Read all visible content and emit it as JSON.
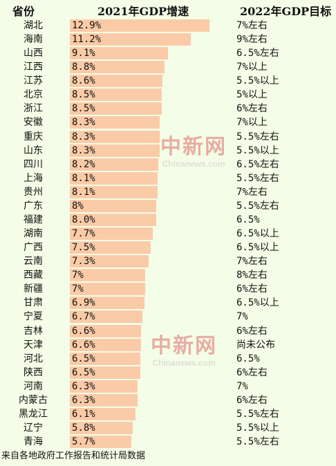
{
  "chart_data": {
    "type": "bar",
    "orientation": "horizontal",
    "headers": {
      "province": "省份",
      "growth": "2021年GDP增速",
      "target": "2022年GDP目标"
    },
    "rows": [
      {
        "province": "湖北",
        "growth": 12.9,
        "label": "12.9%",
        "target": "7%左右"
      },
      {
        "province": "海南",
        "growth": 11.2,
        "label": "11.2%",
        "target": "9%左右"
      },
      {
        "province": "山西",
        "growth": 9.1,
        "label": "9.1%",
        "target": "6.5%左右"
      },
      {
        "province": "江西",
        "growth": 8.8,
        "label": "8.8%",
        "target": "7%以上"
      },
      {
        "province": "江苏",
        "growth": 8.6,
        "label": "8.6%",
        "target": "5.5%以上"
      },
      {
        "province": "北京",
        "growth": 8.5,
        "label": "8.5%",
        "target": "5%以上"
      },
      {
        "province": "浙江",
        "growth": 8.5,
        "label": "8.5%",
        "target": "6%左右"
      },
      {
        "province": "安徽",
        "growth": 8.3,
        "label": "8.3%",
        "target": "7%以上"
      },
      {
        "province": "重庆",
        "growth": 8.3,
        "label": "8.3%",
        "target": "5.5%左右"
      },
      {
        "province": "山东",
        "growth": 8.3,
        "label": "8.3%",
        "target": "5.5%以上"
      },
      {
        "province": "四川",
        "growth": 8.2,
        "label": "8.2%",
        "target": "6.5%左右"
      },
      {
        "province": "上海",
        "growth": 8.1,
        "label": "8.1%",
        "target": "5.5%左右"
      },
      {
        "province": "贵州",
        "growth": 8.1,
        "label": "8.1%",
        "target": "7%左右"
      },
      {
        "province": "广东",
        "growth": 8.0,
        "label": "8%",
        "target": "5.5%左右"
      },
      {
        "province": "福建",
        "growth": 8.0,
        "label": "8.0%",
        "target": "6.5%"
      },
      {
        "province": "湖南",
        "growth": 7.7,
        "label": "7.7%",
        "target": "6.5%以上"
      },
      {
        "province": "广西",
        "growth": 7.5,
        "label": "7.5%",
        "target": "6.5%以上"
      },
      {
        "province": "云南",
        "growth": 7.3,
        "label": "7.3%",
        "target": "7%左右"
      },
      {
        "province": "西藏",
        "growth": 7.0,
        "label": "7%",
        "target": "8%左右"
      },
      {
        "province": "新疆",
        "growth": 7.0,
        "label": "7%",
        "target": "6%左右"
      },
      {
        "province": "甘肃",
        "growth": 6.9,
        "label": "6.9%",
        "target": "6.5%以上"
      },
      {
        "province": "宁夏",
        "growth": 6.7,
        "label": "6.7%",
        "target": "7%"
      },
      {
        "province": "吉林",
        "growth": 6.6,
        "label": "6.6%",
        "target": "6%左右"
      },
      {
        "province": "天津",
        "growth": 6.6,
        "label": "6.6%",
        "target": "尚未公布"
      },
      {
        "province": "河北",
        "growth": 6.5,
        "label": "6.5%",
        "target": "6.5%"
      },
      {
        "province": "陕西",
        "growth": 6.5,
        "label": "6.5%",
        "target": "6%左右"
      },
      {
        "province": "河南",
        "growth": 6.3,
        "label": "6.3%",
        "target": "7%"
      },
      {
        "province": "内蒙古",
        "growth": 6.3,
        "label": "6.3%",
        "target": "6%左右"
      },
      {
        "province": "黑龙江",
        "growth": 6.1,
        "label": "6.1%",
        "target": "5.5%左右"
      },
      {
        "province": "辽宁",
        "growth": 5.8,
        "label": "5.8%",
        "target": "5.5%以上"
      },
      {
        "province": "青海",
        "growth": 5.7,
        "label": "5.7%",
        "target": "5.5%左右"
      }
    ],
    "xlim": [
      0,
      12.9
    ],
    "bar_color": "#fbcba8",
    "source": "来自各地政府工作报告和统计局数据"
  },
  "watermark": {
    "cn": "中新网",
    "en": "Chinanews.com"
  },
  "colors": {
    "background": "#f4fde7",
    "watermark": "#e06a6a"
  }
}
